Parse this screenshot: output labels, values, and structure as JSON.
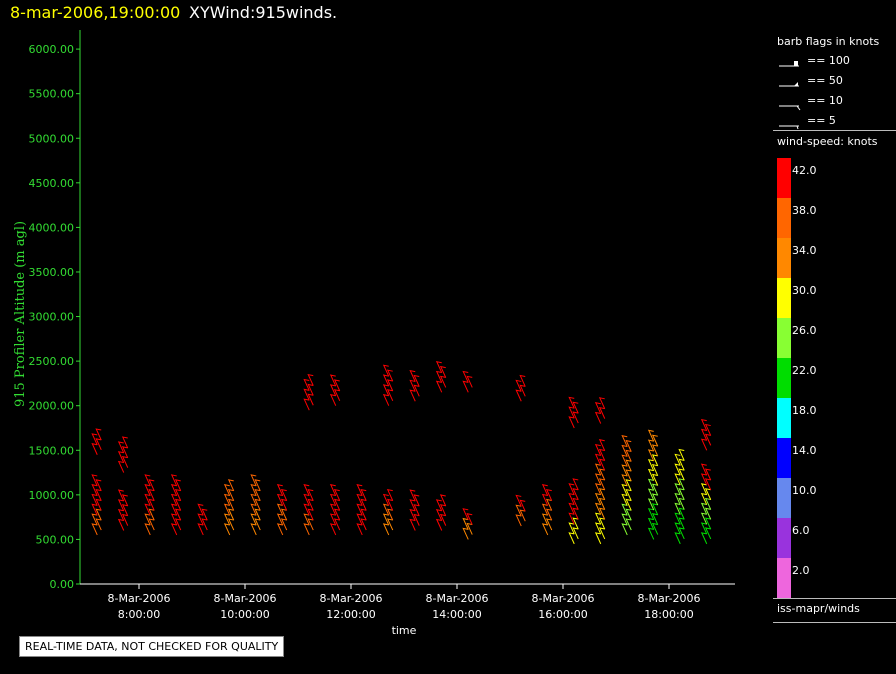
{
  "header": {
    "datetime": "8-mar-2006,19:00:00",
    "product": "XYWind:915winds."
  },
  "legend": {
    "flags_title": "barb flags in knots",
    "flags": [
      {
        "label": "== 100",
        "kind": "100"
      },
      {
        "label": "== 50",
        "kind": "50"
      },
      {
        "label": "== 10",
        "kind": "10"
      },
      {
        "label": "== 5",
        "kind": "5"
      }
    ],
    "speed_title": "wind-speed: knots",
    "scale": [
      {
        "label": "42.0",
        "color": "#ff0000"
      },
      {
        "label": "38.0",
        "color": "#ff6600"
      },
      {
        "label": "34.0",
        "color": "#ff8800"
      },
      {
        "label": "30.0",
        "color": "#ffff00"
      },
      {
        "label": "26.0",
        "color": "#88ff33"
      },
      {
        "label": "22.0",
        "color": "#00dd00"
      },
      {
        "label": "18.0",
        "color": "#00ffff"
      },
      {
        "label": "14.0",
        "color": "#0000ff"
      },
      {
        "label": "10.0",
        "color": "#6688ee"
      },
      {
        "label": "6.0",
        "color": "#9933dd"
      },
      {
        "label": "2.0",
        "color": "#ee66dd"
      }
    ],
    "source": "iss-mapr/winds"
  },
  "notice": "REAL-TIME DATA, NOT CHECKED FOR QUALITY",
  "chart_data": {
    "type": "scatter",
    "mark": "wind barbs",
    "title": "8-mar-2006,19:00:00  XYWind:915winds.",
    "xlabel": "time",
    "ylabel": "915 Profiler Altitude (m agl)",
    "ylim": [
      0,
      6200
    ],
    "xlim_hours": [
      7.05,
      19.25
    ],
    "yticks": [
      "0.00",
      "500.00",
      "1000.00",
      "1500.00",
      "2000.00",
      "2500.00",
      "3000.00",
      "3500.00",
      "4000.00",
      "4500.00",
      "5000.00",
      "5500.00",
      "6000.00"
    ],
    "xticks": [
      {
        "hour": 8,
        "date": "8-Mar-2006",
        "time": "8:00:00"
      },
      {
        "hour": 10,
        "date": "8-Mar-2006",
        "time": "10:00:00"
      },
      {
        "hour": 12,
        "date": "8-Mar-2006",
        "time": "12:00:00"
      },
      {
        "hour": 14,
        "date": "8-Mar-2006",
        "time": "14:00:00"
      },
      {
        "hour": 16,
        "date": "8-Mar-2006",
        "time": "16:00:00"
      },
      {
        "hour": 18,
        "date": "8-Mar-2006",
        "time": "18:00:00"
      }
    ],
    "series": [
      {
        "time": "7:15",
        "hour": 7.25,
        "low": [
          550,
          1100
        ],
        "high": [
          1450,
          1650
        ],
        "speeds": "42 40 38"
      },
      {
        "time": "7:45",
        "hour": 7.75,
        "low": [
          600,
          950
        ],
        "high": [
          1250,
          1550
        ],
        "speeds": "42 40"
      },
      {
        "time": "8:15",
        "hour": 8.25,
        "low": [
          550,
          1120
        ],
        "speeds": "42 40 38"
      },
      {
        "time": "8:45",
        "hour": 8.75,
        "low": [
          550,
          1100
        ],
        "speeds": "42 40"
      },
      {
        "time": "9:15",
        "hour": 9.25,
        "low": [
          550,
          800
        ],
        "speeds": "42 40"
      },
      {
        "time": "9:45",
        "hour": 9.75,
        "low": [
          550,
          1050
        ],
        "speeds": "38 36 34"
      },
      {
        "time": "10:15",
        "hour": 10.25,
        "low": [
          550,
          1120
        ],
        "speeds": "38 36 34"
      },
      {
        "time": "10:45",
        "hour": 10.75,
        "low": [
          550,
          1000
        ],
        "speeds": "42 38"
      },
      {
        "time": "11:15",
        "hour": 11.25,
        "low": [
          550,
          1000
        ],
        "high": [
          1950,
          2250
        ],
        "speeds": "42 40 36"
      },
      {
        "time": "11:45",
        "hour": 11.75,
        "low": [
          550,
          1000
        ],
        "high": [
          2000,
          2250
        ],
        "speeds": "42 40"
      },
      {
        "time": "12:15",
        "hour": 12.25,
        "low": [
          550,
          1000
        ],
        "speeds": "42 40"
      },
      {
        "time": "12:45",
        "hour": 12.75,
        "low": [
          550,
          950
        ],
        "high": [
          2000,
          2330
        ],
        "speeds": "42 38 34"
      },
      {
        "time": "13:15",
        "hour": 13.25,
        "low": [
          600,
          950
        ],
        "high": [
          2050,
          2300
        ],
        "speeds": "42 40"
      },
      {
        "time": "13:45",
        "hour": 13.75,
        "low": [
          600,
          900
        ],
        "high": [
          2150,
          2420
        ],
        "speeds": "42 40"
      },
      {
        "time": "14:15",
        "hour": 14.25,
        "low": [
          500,
          750
        ],
        "high": [
          2150,
          2300
        ],
        "speeds": "42 34"
      },
      {
        "time": "15:15",
        "hour": 15.25,
        "low": [
          650,
          900
        ],
        "high": [
          2050,
          2250
        ],
        "speeds": "42 38"
      },
      {
        "time": "15:45",
        "hour": 15.75,
        "low": [
          550,
          1000
        ],
        "speeds": "42 38 34"
      },
      {
        "time": "16:15",
        "hour": 16.25,
        "low": [
          450,
          1100
        ],
        "high": [
          1750,
          2000
        ],
        "speeds": "42 40 30"
      },
      {
        "time": "16:45",
        "hour": 16.75,
        "low": [
          450,
          1500
        ],
        "high": [
          1800,
          2000
        ],
        "speeds": "42 38 34 30"
      },
      {
        "time": "17:15",
        "hour": 17.25,
        "low": [
          550,
          1550
        ],
        "speeds": "38 34 30 26"
      },
      {
        "time": "17:45",
        "hour": 17.75,
        "low": [
          500,
          1600
        ],
        "speeds": "34 30 26 22"
      },
      {
        "time": "18:15",
        "hour": 18.25,
        "low": [
          450,
          1400
        ],
        "speeds": "30 26 22"
      },
      {
        "time": "18:45",
        "hour": 18.75,
        "low": [
          450,
          1250
        ],
        "high": [
          1500,
          1750
        ],
        "speeds": "42 30 26 22"
      }
    ]
  }
}
